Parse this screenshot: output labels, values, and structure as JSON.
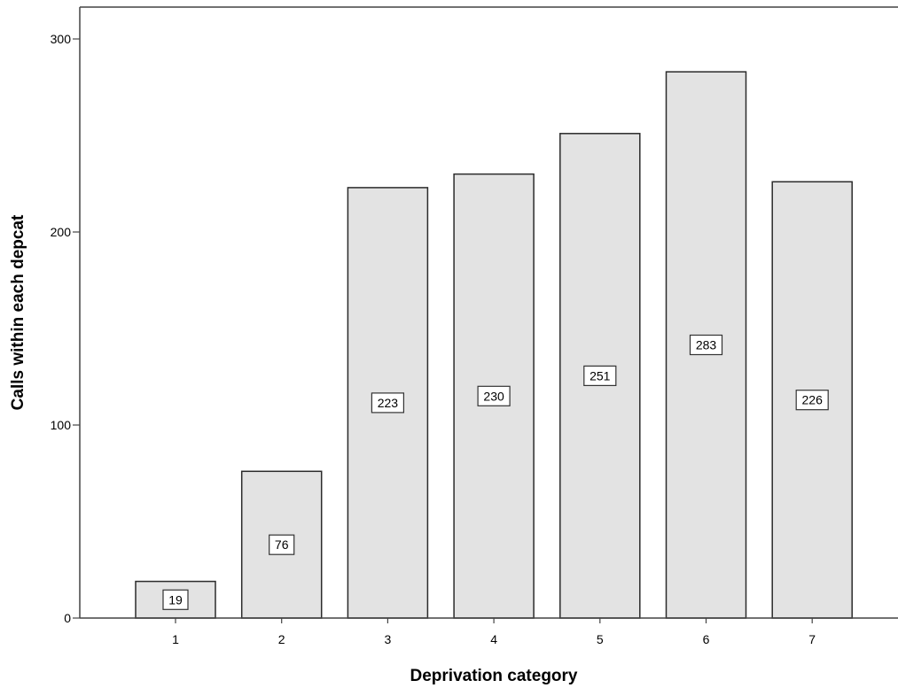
{
  "chart_data": {
    "type": "bar",
    "title": "",
    "xlabel": "Deprivation category",
    "ylabel": "Calls within each depcat",
    "categories": [
      "1",
      "2",
      "3",
      "4",
      "5",
      "6",
      "7"
    ],
    "values": [
      19,
      76,
      223,
      230,
      251,
      283,
      226
    ],
    "data_labels": [
      "19",
      "76",
      "223",
      "230",
      "251",
      "283",
      "226"
    ],
    "ylim": [
      0,
      315
    ],
    "yticks": [
      0,
      100,
      200,
      300
    ],
    "ytick_labels": [
      "0",
      "100",
      "200",
      "300"
    ],
    "grid": false,
    "legend": "none",
    "bar_color": "#e3e3e3",
    "bar_edge_color": "#2b2b2b",
    "label_position": "middle-of-bar"
  }
}
